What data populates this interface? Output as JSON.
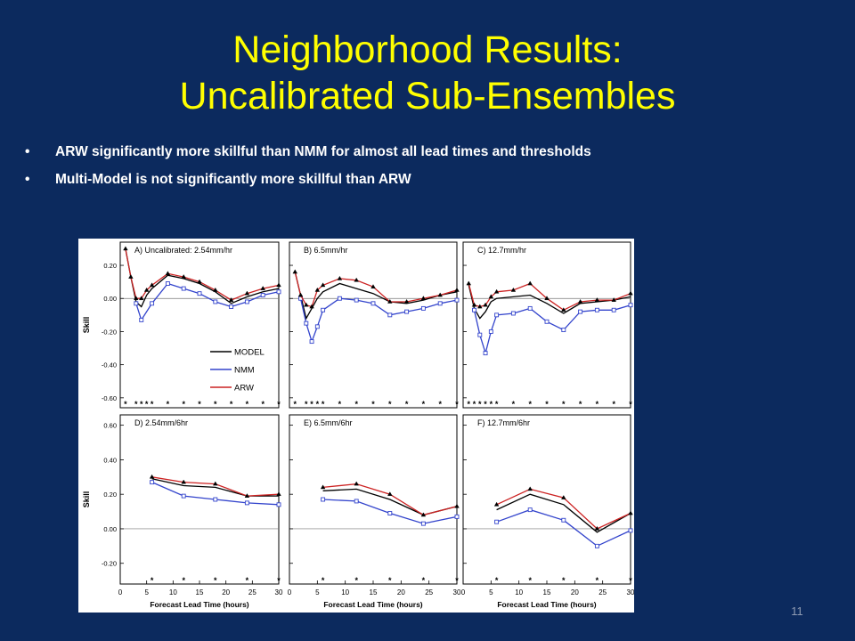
{
  "slide": {
    "title_line1": "Neighborhood Results:",
    "title_line2": "Uncalibrated Sub-Ensembles",
    "bullets": [
      "ARW significantly more skillful than NMM for almost all lead times and thresholds",
      "Multi-Model is not significantly more skillful than ARW"
    ],
    "page_number": "11"
  },
  "colors": {
    "background": "#0c2a5e",
    "title": "#ffff00",
    "MODEL": "#000000",
    "NMM": "#3344cc",
    "ARW": "#cc2222"
  },
  "chart_data": [
    {
      "type": "line",
      "title": "A) Uncalibrated: 2.54mm/hr",
      "xlabel": "",
      "ylabel": "Skill",
      "xlim": [
        0,
        30
      ],
      "ylim": [
        -0.66,
        0.34
      ],
      "yticks": [
        0.2,
        0.0,
        -0.2,
        -0.4,
        -0.6
      ],
      "ytick_labels": [
        "0.20",
        "0.00",
        "-0.20",
        "-0.40",
        "-0.60"
      ],
      "xticks": [],
      "xtick_labels": [],
      "stars": [
        1,
        3,
        4,
        5,
        6,
        9,
        12,
        15,
        18,
        21,
        24,
        27,
        30
      ],
      "legend": [
        "MODEL",
        "NMM",
        "ARW"
      ],
      "series": [
        {
          "name": "MODEL",
          "x": [
            1,
            2,
            3,
            4,
            5,
            6,
            9,
            12,
            15,
            18,
            21,
            24,
            27,
            30
          ],
          "y": [
            0.3,
            0.13,
            -0.02,
            -0.05,
            0.02,
            0.06,
            0.14,
            0.12,
            0.09,
            0.04,
            -0.03,
            0.01,
            0.04,
            0.06
          ]
        },
        {
          "name": "NMM",
          "x": [
            3,
            4,
            6,
            9,
            12,
            15,
            18,
            21,
            24,
            27,
            30
          ],
          "y": [
            -0.03,
            -0.13,
            -0.03,
            0.09,
            0.06,
            0.03,
            -0.02,
            -0.05,
            -0.02,
            0.02,
            0.04
          ]
        },
        {
          "name": "ARW",
          "x": [
            1,
            2,
            3,
            4,
            5,
            6,
            9,
            12,
            15,
            18,
            21,
            24,
            27,
            30
          ],
          "y": [
            0.3,
            0.13,
            0.0,
            0.0,
            0.05,
            0.08,
            0.15,
            0.13,
            0.1,
            0.05,
            -0.01,
            0.03,
            0.06,
            0.08
          ]
        }
      ]
    },
    {
      "type": "line",
      "title": "B) 6.5mm/hr",
      "xlabel": "",
      "ylabel": "",
      "xlim": [
        0,
        30
      ],
      "ylim": [
        -0.66,
        0.34
      ],
      "yticks": [
        0.2,
        0.0,
        -0.2,
        -0.4,
        -0.6
      ],
      "ytick_labels": [],
      "xticks": [],
      "xtick_labels": [],
      "stars": [
        1,
        3,
        4,
        5,
        6,
        9,
        12,
        15,
        18,
        21,
        24,
        27,
        30
      ],
      "series": [
        {
          "name": "MODEL",
          "x": [
            1,
            2,
            3,
            4,
            5,
            6,
            9,
            12,
            15,
            18,
            21,
            24,
            27,
            30
          ],
          "y": [
            0.16,
            0.02,
            -0.12,
            -0.06,
            0.0,
            0.04,
            0.09,
            0.06,
            0.03,
            -0.02,
            -0.03,
            -0.01,
            0.02,
            0.04
          ]
        },
        {
          "name": "NMM",
          "x": [
            2,
            3,
            4,
            5,
            6,
            9,
            12,
            15,
            18,
            21,
            24,
            27,
            30
          ],
          "y": [
            0.0,
            -0.15,
            -0.26,
            -0.17,
            -0.07,
            0.0,
            -0.01,
            -0.03,
            -0.1,
            -0.08,
            -0.06,
            -0.03,
            -0.01
          ]
        },
        {
          "name": "ARW",
          "x": [
            1,
            2,
            3,
            4,
            5,
            6,
            9,
            12,
            15,
            18,
            21,
            24,
            27,
            30
          ],
          "y": [
            0.16,
            0.02,
            -0.04,
            -0.05,
            0.05,
            0.08,
            0.12,
            0.11,
            0.07,
            -0.02,
            -0.02,
            0.0,
            0.02,
            0.05
          ]
        }
      ]
    },
    {
      "type": "line",
      "title": "C) 12.7mm/hr",
      "xlabel": "",
      "ylabel": "",
      "xlim": [
        0,
        30
      ],
      "ylim": [
        -0.66,
        0.34
      ],
      "yticks": [
        0.2,
        0.0,
        -0.2,
        -0.4,
        -0.6
      ],
      "ytick_labels": [],
      "xticks": [],
      "xtick_labels": [],
      "stars": [
        1,
        2,
        3,
        4,
        5,
        6,
        9,
        12,
        15,
        18,
        21,
        24,
        27,
        30
      ],
      "series": [
        {
          "name": "MODEL",
          "x": [
            1,
            2,
            3,
            4,
            5,
            6,
            9,
            12,
            15,
            18,
            21,
            24,
            27,
            30
          ],
          "y": [
            0.08,
            -0.06,
            -0.12,
            -0.08,
            -0.02,
            0.0,
            0.01,
            0.02,
            -0.03,
            -0.09,
            -0.03,
            -0.02,
            -0.01,
            0.01
          ]
        },
        {
          "name": "NMM",
          "x": [
            2,
            3,
            4,
            5,
            6,
            9,
            12,
            15,
            18,
            21,
            24,
            27,
            30
          ],
          "y": [
            -0.07,
            -0.22,
            -0.33,
            -0.2,
            -0.1,
            -0.09,
            -0.06,
            -0.14,
            -0.19,
            -0.08,
            -0.07,
            -0.07,
            -0.04
          ]
        },
        {
          "name": "ARW",
          "x": [
            1,
            2,
            3,
            4,
            5,
            6,
            9,
            12,
            15,
            18,
            21,
            24,
            27,
            30
          ],
          "y": [
            0.09,
            -0.04,
            -0.05,
            -0.04,
            0.01,
            0.04,
            0.05,
            0.09,
            0.0,
            -0.07,
            -0.02,
            -0.01,
            -0.01,
            0.03
          ]
        }
      ]
    },
    {
      "type": "line",
      "title": "D) 2.54mm/6hr",
      "xlabel": "Forecast Lead Time (hours)",
      "ylabel": "Skill",
      "xlim": [
        0,
        30
      ],
      "ylim": [
        -0.32,
        0.66
      ],
      "yticks": [
        0.6,
        0.4,
        0.2,
        0.0,
        -0.2
      ],
      "ytick_labels": [
        "0.60",
        "0.40",
        "0.20",
        "0.00",
        "-0.20"
      ],
      "xticks": [
        0,
        5,
        10,
        15,
        20,
        25,
        30
      ],
      "xtick_labels": [
        "0",
        "5",
        "10",
        "15",
        "20",
        "25",
        "30"
      ],
      "stars": [
        6,
        12,
        18,
        24,
        30
      ],
      "series": [
        {
          "name": "MODEL",
          "x": [
            6,
            12,
            18,
            24,
            30
          ],
          "y": [
            0.29,
            0.25,
            0.24,
            0.19,
            0.19
          ]
        },
        {
          "name": "NMM",
          "x": [
            6,
            12,
            18,
            24,
            30
          ],
          "y": [
            0.27,
            0.19,
            0.17,
            0.15,
            0.14
          ]
        },
        {
          "name": "ARW",
          "x": [
            6,
            12,
            18,
            24,
            30
          ],
          "y": [
            0.3,
            0.27,
            0.26,
            0.19,
            0.2
          ]
        }
      ]
    },
    {
      "type": "line",
      "title": "E) 6.5mm/6hr",
      "xlabel": "Forecast Lead Time (hours)",
      "ylabel": "",
      "xlim": [
        0,
        30
      ],
      "ylim": [
        -0.32,
        0.66
      ],
      "yticks": [
        0.6,
        0.4,
        0.2,
        0.0,
        -0.2
      ],
      "ytick_labels": [],
      "xticks": [
        0,
        5,
        10,
        15,
        20,
        25,
        30
      ],
      "xtick_labels": [
        "0",
        "5",
        "10",
        "15",
        "20",
        "25",
        "30"
      ],
      "stars": [
        6,
        12,
        18,
        24,
        30
      ],
      "series": [
        {
          "name": "MODEL",
          "x": [
            6,
            12,
            18,
            24,
            30
          ],
          "y": [
            0.22,
            0.23,
            0.17,
            0.08,
            0.13
          ]
        },
        {
          "name": "NMM",
          "x": [
            6,
            12,
            18,
            24,
            30
          ],
          "y": [
            0.17,
            0.16,
            0.09,
            0.03,
            0.07
          ]
        },
        {
          "name": "ARW",
          "x": [
            6,
            12,
            18,
            24,
            30
          ],
          "y": [
            0.24,
            0.26,
            0.2,
            0.08,
            0.13
          ]
        }
      ]
    },
    {
      "type": "line",
      "title": "F) 12.7mm/6hr",
      "xlabel": "Forecast Lead Time (hours)",
      "ylabel": "",
      "xlim": [
        0,
        30
      ],
      "ylim": [
        -0.32,
        0.66
      ],
      "yticks": [
        0.6,
        0.4,
        0.2,
        0.0,
        -0.2
      ],
      "ytick_labels": [],
      "xticks": [
        0,
        5,
        10,
        15,
        20,
        25,
        30
      ],
      "xtick_labels": [
        "0",
        "5",
        "10",
        "15",
        "20",
        "25",
        "30"
      ],
      "stars": [
        6,
        12,
        18,
        24,
        30
      ],
      "series": [
        {
          "name": "MODEL",
          "x": [
            6,
            12,
            18,
            24,
            30
          ],
          "y": [
            0.11,
            0.2,
            0.14,
            -0.02,
            0.09
          ]
        },
        {
          "name": "NMM",
          "x": [
            6,
            12,
            18,
            24,
            30
          ],
          "y": [
            0.04,
            0.11,
            0.05,
            -0.1,
            -0.01
          ]
        },
        {
          "name": "ARW",
          "x": [
            6,
            12,
            18,
            24,
            30
          ],
          "y": [
            0.14,
            0.23,
            0.18,
            0.0,
            0.09
          ]
        }
      ]
    }
  ]
}
